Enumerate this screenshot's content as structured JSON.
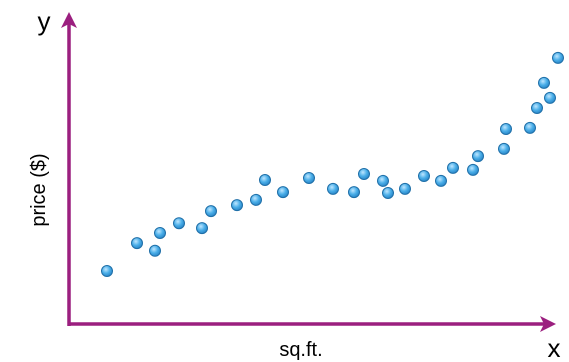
{
  "chart_data": {
    "type": "scatter",
    "xlabel": "sq.ft.",
    "ylabel": "price ($)",
    "x_axis_letter": "x",
    "y_axis_letter": "y",
    "grid": false,
    "xlim": [
      0,
      100
    ],
    "ylim": [
      0,
      100
    ],
    "axis_color": "#9b1f7f",
    "point_fill": "#4aaee8",
    "point_stroke": "#1f6fa8",
    "points": [
      {
        "x": 7.6,
        "y": 18.4
      },
      {
        "x": 13.6,
        "y": 28.1
      },
      {
        "x": 17.2,
        "y": 25.4
      },
      {
        "x": 18.2,
        "y": 31.6
      },
      {
        "x": 22.0,
        "y": 35.0
      },
      {
        "x": 26.6,
        "y": 33.3
      },
      {
        "x": 28.4,
        "y": 39.2
      },
      {
        "x": 33.6,
        "y": 41.3
      },
      {
        "x": 37.4,
        "y": 43.1
      },
      {
        "x": 39.2,
        "y": 50.0
      },
      {
        "x": 42.8,
        "y": 45.8
      },
      {
        "x": 48.0,
        "y": 50.7
      },
      {
        "x": 52.8,
        "y": 46.9
      },
      {
        "x": 57.0,
        "y": 45.8
      },
      {
        "x": 59.0,
        "y": 52.1
      },
      {
        "x": 62.8,
        "y": 49.7
      },
      {
        "x": 63.8,
        "y": 45.5
      },
      {
        "x": 67.2,
        "y": 46.9
      },
      {
        "x": 71.0,
        "y": 51.4
      },
      {
        "x": 74.4,
        "y": 49.7
      },
      {
        "x": 76.8,
        "y": 54.2
      },
      {
        "x": 80.8,
        "y": 53.5
      },
      {
        "x": 81.8,
        "y": 58.3
      },
      {
        "x": 87.0,
        "y": 60.8
      },
      {
        "x": 87.4,
        "y": 67.7
      },
      {
        "x": 92.2,
        "y": 68.1
      },
      {
        "x": 93.6,
        "y": 75.0
      },
      {
        "x": 95.0,
        "y": 83.7
      },
      {
        "x": 96.2,
        "y": 78.5
      },
      {
        "x": 97.8,
        "y": 92.4
      }
    ]
  }
}
